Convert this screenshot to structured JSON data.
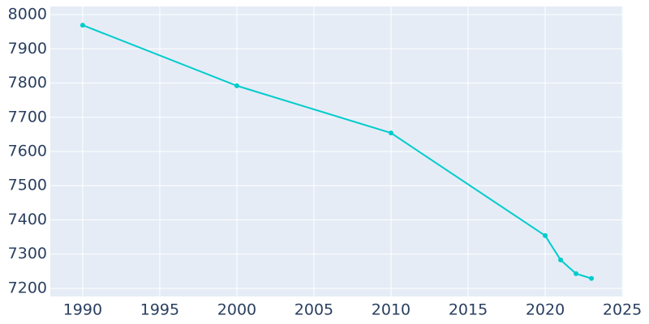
{
  "chart_data": {
    "type": "line",
    "x": [
      1990,
      2000,
      2010,
      2020,
      2021,
      2022,
      2023
    ],
    "series": [
      {
        "color": "#00cccc",
        "values": [
          7969,
          7792,
          7654,
          7354,
          7283,
          7243,
          7229
        ]
      }
    ],
    "xlim": [
      1987.9,
      2025.05
    ],
    "xticks": [
      1990,
      1995,
      2000,
      2005,
      2010,
      2015,
      2020,
      2025
    ],
    "ylim": [
      7176.3,
      8023.7
    ],
    "yticks": [
      7200,
      7300,
      7400,
      7500,
      7600,
      7700,
      7800,
      7900,
      8000
    ],
    "grid": true
  }
}
